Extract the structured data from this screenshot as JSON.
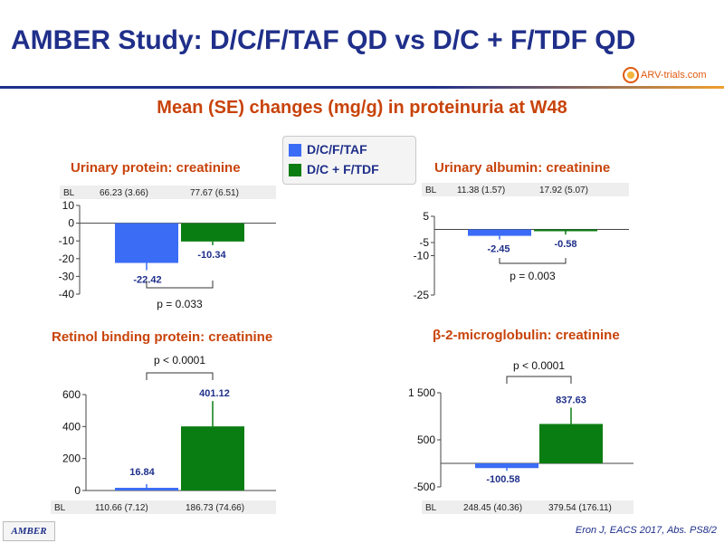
{
  "title": "AMBER Study: D/C/F/TAF QD vs D/C + F/TDF QD",
  "logo_text": "ARV-trials.com",
  "subtitle": "Mean (SE) changes (mg/g) in proteinuria at W48",
  "legend": [
    {
      "label": "D/C/F/TAF",
      "color": "#3b6cf5"
    },
    {
      "label": "D/C + F/TDF",
      "color": "#0a7d12"
    }
  ],
  "footer": {
    "left": "AMBER",
    "right": "Eron J, EACS 2017, Abs. PS8/2"
  },
  "chart_data": [
    {
      "type": "bar",
      "title": "Urinary protein: creatinine",
      "categories": [
        "D/C/F/TAF",
        "D/C + F/TDF"
      ],
      "values": [
        -22.42,
        -10.34
      ],
      "value_labels": [
        "-22.42",
        "-10.34"
      ],
      "ylim": [
        -40,
        10
      ],
      "yticks": [
        10,
        0,
        -10,
        -20,
        -30,
        -40
      ],
      "ytick_labels": [
        "10",
        "0",
        "-10",
        "-20",
        "-30",
        "-40"
      ],
      "baseline_label": "BL",
      "baseline": [
        "66.23 (3.66)",
        "77.67 (6.51)"
      ],
      "pvalue": "p = 0.033"
    },
    {
      "type": "bar",
      "title": "Urinary albumin: creatinine",
      "categories": [
        "D/C/F/TAF",
        "D/C + F/TDF"
      ],
      "values": [
        -2.45,
        -0.58
      ],
      "value_labels": [
        "-2.45",
        "-0.58"
      ],
      "ylim": [
        -25,
        5
      ],
      "yticks": [
        5,
        -5,
        -10,
        -25
      ],
      "ytick_labels": [
        "5",
        "-5",
        "-10",
        "-25"
      ],
      "baseline_label": "BL",
      "baseline": [
        "11.38 (1.57)",
        "17.92 (5.07)"
      ],
      "pvalue": "p = 0.003"
    },
    {
      "type": "bar",
      "title": "Retinol binding protein: creatinine",
      "categories": [
        "D/C/F/TAF",
        "D/C + F/TDF"
      ],
      "values": [
        16.84,
        401.12
      ],
      "value_labels": [
        "16.84",
        "401.12"
      ],
      "ylim": [
        0,
        600
      ],
      "yticks": [
        600,
        400,
        200,
        0
      ],
      "ytick_labels": [
        "600",
        "400",
        "200",
        "0"
      ],
      "baseline_label": "BL",
      "baseline": [
        "110.66 (7.12)",
        "186.73 (74.66)"
      ],
      "pvalue": "p < 0.0001"
    },
    {
      "type": "bar",
      "title": "β-2-microglobulin: creatinine",
      "categories": [
        "D/C/F/TAF",
        "D/C + F/TDF"
      ],
      "values": [
        -100.58,
        837.63
      ],
      "value_labels": [
        "-100.58",
        "837.63"
      ],
      "ylim": [
        -500,
        1500
      ],
      "yticks": [
        1500,
        500,
        -500
      ],
      "ytick_labels": [
        "1 500",
        "500",
        "-500"
      ],
      "baseline_label": "BL",
      "baseline": [
        "248.45 (40.36)",
        "379.54 (176.11)"
      ],
      "pvalue": "p < 0.0001"
    }
  ]
}
